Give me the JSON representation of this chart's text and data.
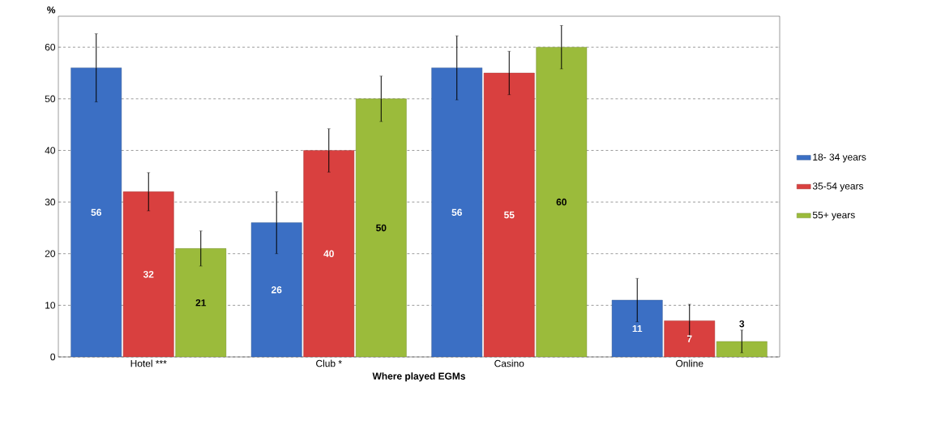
{
  "chart_data": {
    "type": "bar",
    "xlabel": "Where played EGMs",
    "ylabel": "%",
    "categories": [
      "Hotel ***",
      "Club *",
      "Casino",
      "Online"
    ],
    "series": [
      {
        "name": "18- 34 years",
        "color": "#3b6fc4",
        "values": [
          56,
          26,
          56,
          11
        ],
        "errors": [
          6.6,
          6,
          6.2,
          4.2
        ]
      },
      {
        "name": "35-54 years",
        "color": "#d9403f",
        "values": [
          32,
          40,
          55,
          7
        ],
        "errors": [
          3.7,
          4.2,
          4.2,
          3.2
        ]
      },
      {
        "name": "55+ years",
        "color": "#9bbb3b",
        "values": [
          21,
          50,
          60,
          3
        ],
        "errors": [
          3.4,
          4.4,
          4.2,
          2.2
        ]
      }
    ],
    "ylim": [
      0,
      66
    ],
    "yticks": [
      0,
      10,
      20,
      30,
      40,
      50,
      60
    ],
    "grid": "y",
    "legend": "right",
    "data_labels": true
  }
}
